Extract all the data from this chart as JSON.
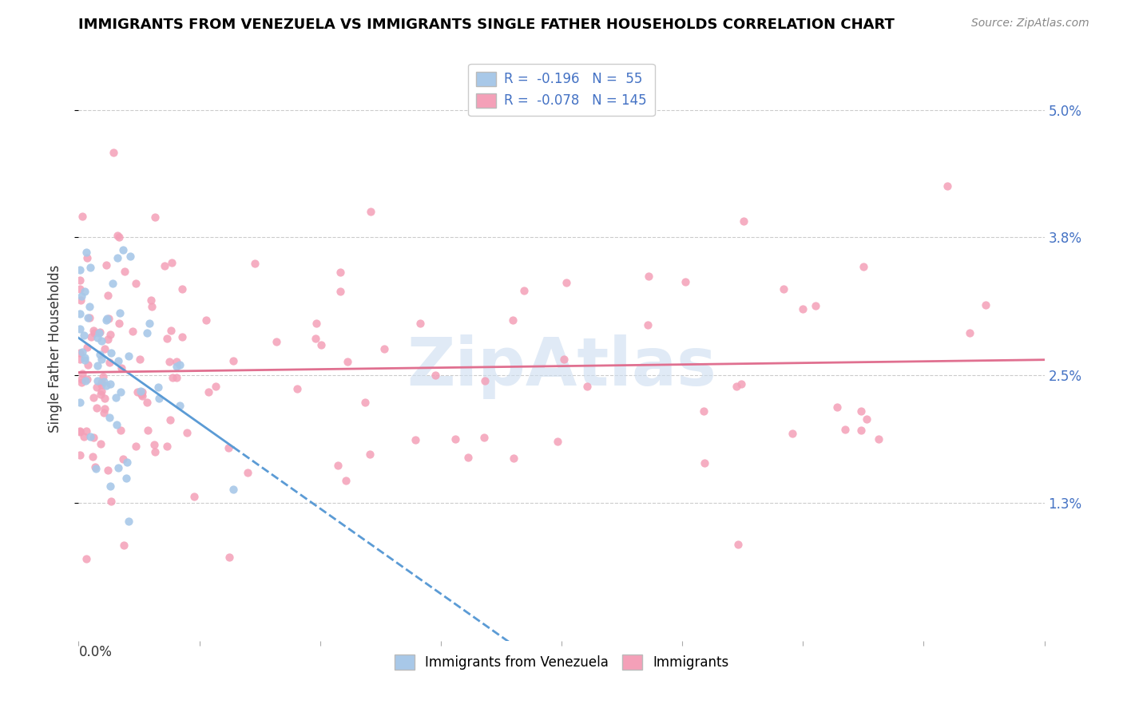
{
  "title": "IMMIGRANTS FROM VENEZUELA VS IMMIGRANTS SINGLE FATHER HOUSEHOLDS CORRELATION CHART",
  "source": "Source: ZipAtlas.com",
  "ylabel": "Single Father Households",
  "xlim": [
    0.0,
    0.8
  ],
  "ylim": [
    0.0,
    0.055
  ],
  "ytick_vals": [
    0.013,
    0.025,
    0.038,
    0.05
  ],
  "ytick_labels": [
    "1.3%",
    "2.5%",
    "3.8%",
    "5.0%"
  ],
  "dot_color_blue": "#a8c8e8",
  "dot_color_pink": "#f4a0b8",
  "line_color_blue": "#5b9bd5",
  "line_color_pink": "#e07090",
  "watermark": "ZipAtlas",
  "watermark_color": "#ccddf0",
  "grid_color": "#cccccc",
  "title_fontsize": 13,
  "source_fontsize": 10,
  "legend_r1": "R =  -0.196",
  "legend_n1": "N =  55",
  "legend_r2": "R =  -0.078",
  "legend_n2": "N = 145"
}
